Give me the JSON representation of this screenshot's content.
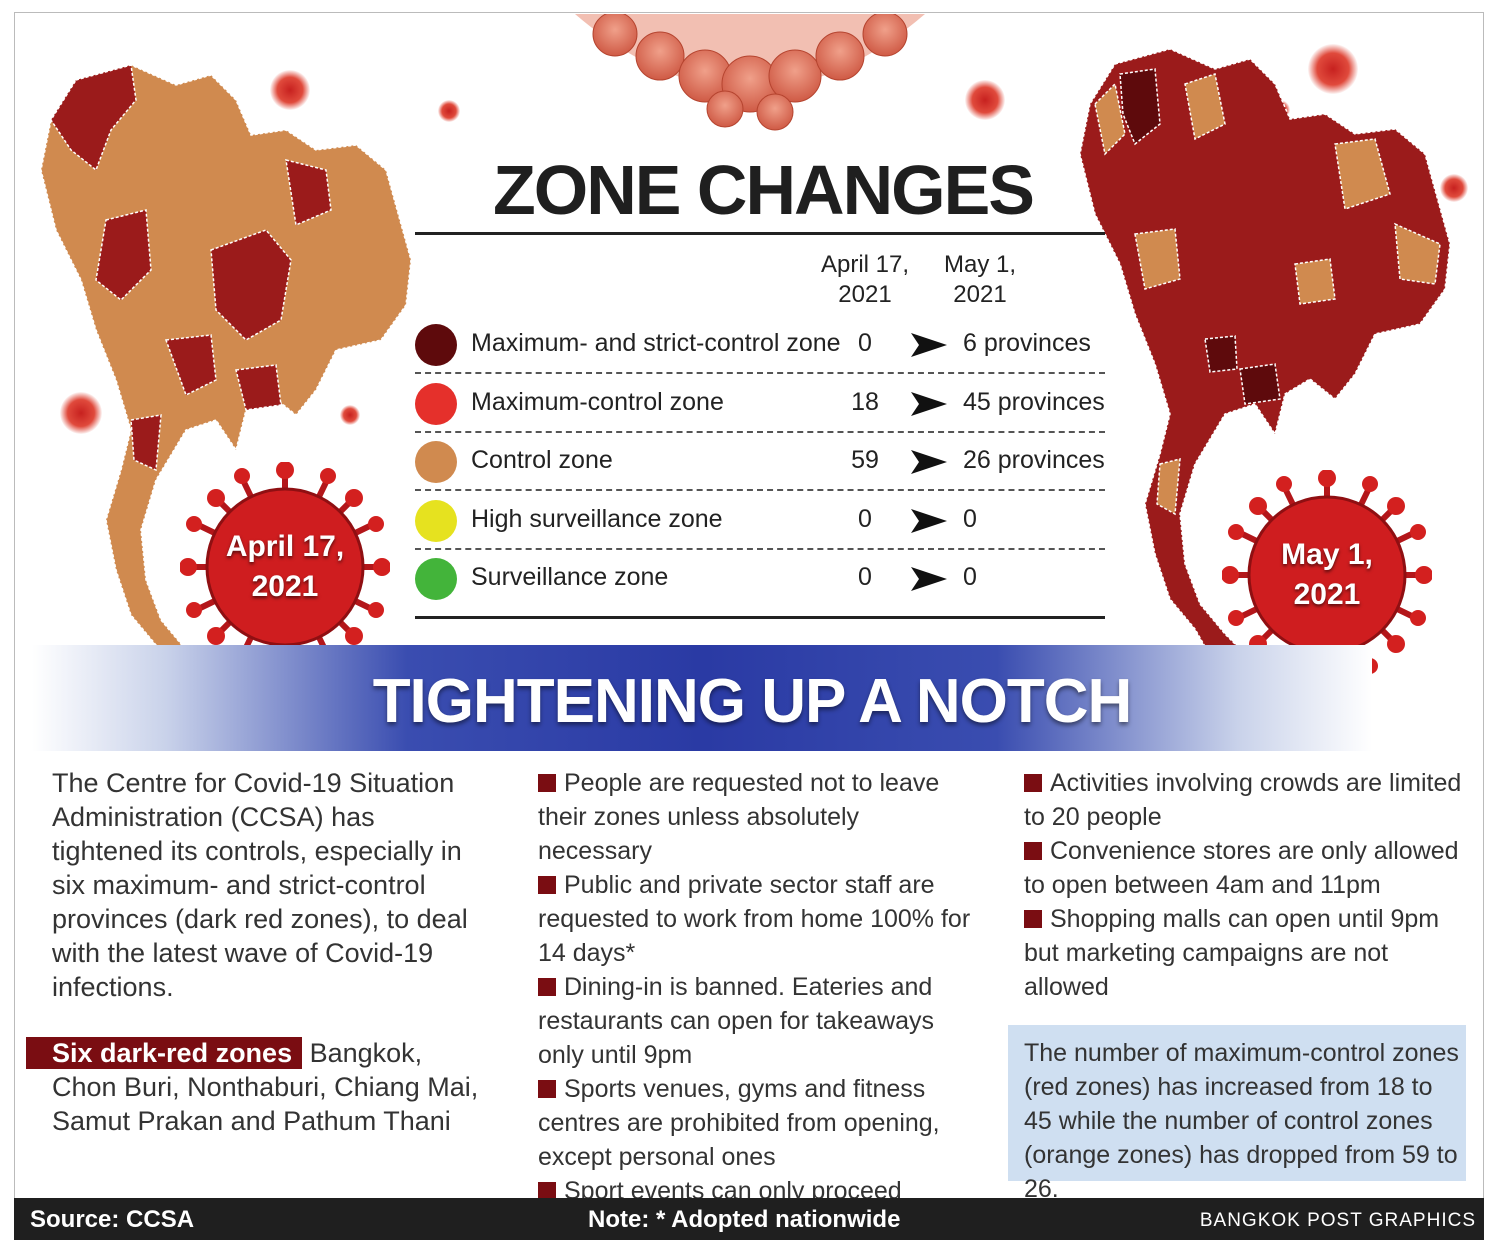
{
  "header": {
    "title": "ZONE CHANGES"
  },
  "table": {
    "col_a": [
      "April 17,",
      "2021"
    ],
    "col_b": [
      "May 1,",
      "2021"
    ],
    "rows": [
      {
        "label": "Maximum- and strict-control zone",
        "a": "0",
        "b": "6  provinces",
        "color": "#5e0a0c"
      },
      {
        "label": "Maximum-control zone",
        "a": "18",
        "b": "45 provinces",
        "color": "#e5302b"
      },
      {
        "label": "Control zone",
        "a": "59",
        "b": "26 provinces",
        "color": "#d08a4f"
      },
      {
        "label": "High surveillance zone",
        "a": "0",
        "b": "0",
        "color": "#e6e21f"
      },
      {
        "label": "Surveillance zone",
        "a": "0",
        "b": "0",
        "color": "#43b43a"
      }
    ]
  },
  "maps": {
    "left_label": [
      "April 17,",
      "2021"
    ],
    "right_label": [
      "May 1,",
      "2021"
    ],
    "colors": {
      "dark_red": "#5e0a0c",
      "red": "#9b1b1b",
      "orange": "#d08a4f"
    }
  },
  "banner": {
    "title": "TIGHTENING UP A NOTCH"
  },
  "intro": "The Centre for Covid-19 Situation Administration (CCSA) has tightened its controls, especially in six maximum- and strict-control provinces (dark red zones), to deal with the latest wave of Covid-19 infections.",
  "six_zones": {
    "tag": "Six dark-red zones",
    "text": "Bangkok, Chon Buri, Nonthaburi, Chiang Mai, Samut Prakan and Pathum Thani"
  },
  "measures": [
    "People are requested not to leave their zones unless absolutely necessary",
    "Public and private sector staff are requested to work from home 100% for 14 days*",
    "Dining-in is banned. Eateries and restaurants can open for takeaways only until 9pm",
    "Sports venues, gyms and fitness centres are prohibited from opening, except personal ones",
    "Sport events can only proceed without fans attending",
    "Activities involving crowds are limited to 20 people",
    "Convenience stores are only allowed to open between 4am and 11pm",
    "Shopping malls can open until 9pm but marketing campaigns are not allowed"
  ],
  "note_box": "The number of maximum-control zones (red zones) has increased from 18 to 45 while the number of control zones (orange zones) has dropped from 59 to 26.",
  "footer": {
    "source": "Source: CCSA",
    "note": "Note: * Adopted nationwide",
    "credit": "BANGKOK POST GRAPHICS"
  }
}
